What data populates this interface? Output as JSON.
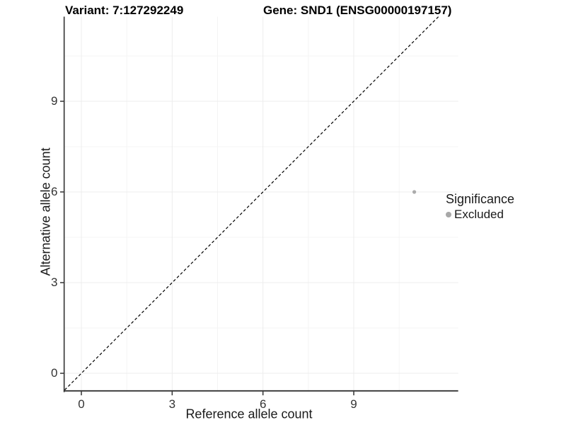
{
  "chart_data": {
    "type": "scatter",
    "title_left": "Variant: 7:127292249",
    "title_right": "Gene: SND1 (ENSG00000197157)",
    "xlabel": "Reference allele count",
    "ylabel": "Alternative allele count",
    "x_ticks": [
      0,
      3,
      6,
      9
    ],
    "y_ticks": [
      0,
      3,
      6,
      9
    ],
    "xlim": [
      -0.55,
      12.45
    ],
    "ylim": [
      -0.6,
      11.8
    ],
    "grid": {
      "major": true,
      "minor": true
    },
    "series": [
      {
        "name": "Excluded",
        "color": "#ababab",
        "points": [
          [
            11,
            6
          ]
        ]
      }
    ],
    "reference_line": {
      "type": "identity",
      "style": "dashed",
      "color": "#000000"
    },
    "legend": {
      "position": "right",
      "title": "Significance",
      "items": [
        {
          "label": "Excluded",
          "color": "#a8a8a8"
        }
      ]
    }
  },
  "colors": {
    "background": "#ffffff",
    "axis_line": "#333333",
    "tick_mark": "#333333",
    "grid_major": "#ececec",
    "grid_minor": "#f4f4f4",
    "point": "#ababab",
    "dashed_line": "#000000"
  }
}
